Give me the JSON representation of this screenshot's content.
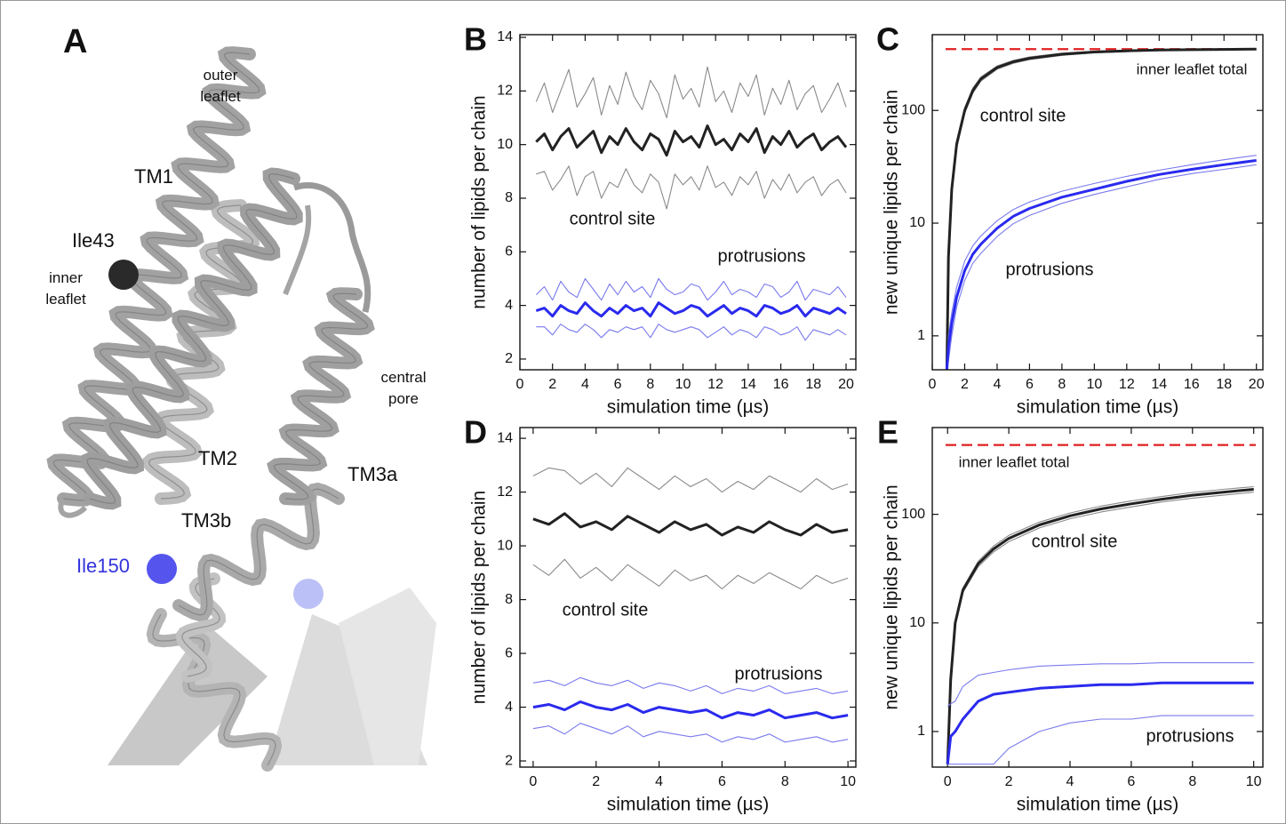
{
  "panel_a": {
    "letter": "A",
    "labels": [
      "outer leaflet",
      "TM1",
      "Ile43",
      "inner leaflet",
      "central pore",
      "TM2",
      "TM3a",
      "TM3b",
      "Ile150"
    ]
  },
  "chart_data": [
    {
      "type": "line",
      "panel": "B",
      "xlabel": "simulation time (µs)",
      "ylabel": "number of lipids per chain",
      "annotations": [
        "control site",
        "protrusions"
      ],
      "x": [
        1,
        1.5,
        2,
        2.5,
        3,
        3.5,
        4,
        4.5,
        5,
        5.5,
        6,
        6.5,
        7,
        7.5,
        8,
        8.5,
        9,
        9.5,
        10,
        10.5,
        11,
        11.5,
        12,
        12.5,
        13,
        13.5,
        14,
        14.5,
        15,
        15.5,
        16,
        16.5,
        17,
        17.5,
        18,
        18.5,
        19,
        19.5,
        20
      ],
      "series": [
        {
          "color": "#8a8a8a",
          "values": [
            11.6,
            12.3,
            11.2,
            12.0,
            12.8,
            11.4,
            11.9,
            12.5,
            11.1,
            12.2,
            11.5,
            12.7,
            11.8,
            11.3,
            12.4,
            11.9,
            11.0,
            12.6,
            11.7,
            12.1,
            11.4,
            12.9,
            11.6,
            12.0,
            11.2,
            12.3,
            11.8,
            12.6,
            11.1,
            12.1,
            11.5,
            12.4,
            11.3,
            11.9,
            12.2,
            11.2,
            11.7,
            12.3,
            11.4
          ]
        },
        {
          "color": "#8a8a8a",
          "values": [
            8.9,
            9.0,
            8.3,
            8.7,
            9.2,
            8.1,
            8.8,
            9.0,
            8.0,
            8.6,
            8.4,
            9.1,
            8.5,
            8.2,
            8.9,
            8.6,
            7.6,
            8.9,
            8.5,
            8.8,
            8.3,
            9.2,
            8.4,
            8.6,
            8.1,
            8.8,
            8.5,
            9.0,
            8.0,
            8.7,
            8.3,
            8.9,
            8.2,
            8.6,
            8.8,
            8.1,
            8.5,
            8.7,
            8.2
          ]
        },
        {
          "color": "#222222",
          "values": [
            10.1,
            10.4,
            9.8,
            10.3,
            10.6,
            9.9,
            10.2,
            10.5,
            9.7,
            10.3,
            10.0,
            10.6,
            10.1,
            9.8,
            10.4,
            10.2,
            9.6,
            10.5,
            10.1,
            10.3,
            9.9,
            10.7,
            10.0,
            10.2,
            9.8,
            10.4,
            10.1,
            10.6,
            9.7,
            10.3,
            10.0,
            10.5,
            9.9,
            10.2,
            10.4,
            9.8,
            10.1,
            10.3,
            9.9
          ]
        },
        {
          "color": "#7a7aee",
          "values": [
            4.4,
            4.7,
            4.2,
            4.9,
            4.5,
            4.3,
            5.0,
            4.6,
            4.2,
            4.8,
            4.4,
            4.9,
            4.5,
            4.7,
            4.3,
            5.0,
            4.6,
            4.4,
            4.5,
            4.8,
            4.7,
            4.2,
            4.5,
            4.9,
            4.4,
            4.6,
            4.5,
            4.3,
            4.8,
            4.7,
            4.3,
            4.5,
            4.9,
            4.2,
            4.6,
            4.5,
            4.4,
            4.7,
            4.3
          ]
        },
        {
          "color": "#7a7aee",
          "values": [
            3.2,
            3.2,
            2.9,
            3.3,
            3.1,
            3.0,
            3.3,
            3.1,
            2.8,
            3.1,
            3.0,
            3.2,
            3.1,
            3.2,
            2.8,
            3.3,
            3.1,
            3.0,
            3.1,
            3.2,
            3.1,
            2.8,
            3.0,
            3.2,
            2.9,
            3.1,
            3.0,
            2.8,
            3.2,
            3.1,
            2.9,
            3.0,
            3.2,
            2.7,
            3.1,
            3.0,
            2.9,
            3.1,
            2.9
          ]
        },
        {
          "color": "#2a2aee",
          "values": [
            3.8,
            3.9,
            3.6,
            4.0,
            3.8,
            3.7,
            4.1,
            3.8,
            3.6,
            3.9,
            3.7,
            4.0,
            3.8,
            3.9,
            3.6,
            4.1,
            3.9,
            3.7,
            3.8,
            4.0,
            3.9,
            3.6,
            3.8,
            4.0,
            3.7,
            3.9,
            3.8,
            3.6,
            4.0,
            3.9,
            3.7,
            3.8,
            4.0,
            3.6,
            3.9,
            3.8,
            3.7,
            3.9,
            3.7
          ]
        }
      ],
      "xlim": [
        0,
        20.6
      ],
      "xticks": [
        0,
        2,
        4,
        6,
        8,
        10,
        12,
        14,
        16,
        18,
        20
      ],
      "ylim": [
        1.6,
        14.1
      ],
      "yticks": [
        2,
        4,
        6,
        8,
        10,
        12,
        14
      ],
      "log_y": false
    },
    {
      "type": "line",
      "panel": "C",
      "xlabel": "simulation time (µs)",
      "ylabel": "new unique lipids per chain",
      "annotations": [
        "control site",
        "protrusions"
      ],
      "reference": {
        "value": 350,
        "label": "inner leaflet total",
        "color": "#e02020"
      },
      "x": [
        0.9,
        1,
        1.2,
        1.5,
        2,
        2.5,
        3,
        4,
        5,
        6,
        8,
        10,
        12,
        14,
        16,
        18,
        20
      ],
      "series": [
        {
          "color": "#8a8a8a",
          "values": [
            0.5,
            5.5,
            22,
            54,
            106,
            158,
            198,
            248,
            278,
            298,
            322,
            336,
            343,
            347,
            350,
            352,
            353
          ]
        },
        {
          "color": "#8a8a8a",
          "values": [
            0.5,
            4.5,
            18,
            46,
            94,
            142,
            182,
            232,
            262,
            282,
            308,
            324,
            333,
            339,
            342,
            344,
            347
          ]
        },
        {
          "color": "#222222",
          "values": [
            0.5,
            5,
            20,
            50,
            100,
            150,
            190,
            240,
            270,
            290,
            315,
            330,
            338,
            343,
            346,
            348,
            350
          ]
        },
        {
          "color": "#7a7aee",
          "values": [
            0.5,
            1.0,
            1.6,
            2.7,
            4.6,
            6.3,
            7.7,
            10.5,
            13.2,
            15.4,
            19.2,
            22.5,
            26,
            29.5,
            33,
            36.5,
            40
          ]
        },
        {
          "color": "#7a7aee",
          "values": [
            0.5,
            0.6,
            1.0,
            1.8,
            3.1,
            4.4,
            5.4,
            7.6,
            9.9,
            11.7,
            15,
            18,
            21,
            24.5,
            27.5,
            30,
            33
          ]
        },
        {
          "color": "#2a2aee",
          "values": [
            0.5,
            0.8,
            1.3,
            2.2,
            3.8,
            5.3,
            6.5,
            9,
            11.5,
            13.5,
            17,
            20,
            23.5,
            27,
            30,
            33,
            36
          ]
        }
      ],
      "xlim": [
        0,
        20.4
      ],
      "xticks": [
        0,
        2,
        4,
        6,
        8,
        10,
        12,
        14,
        16,
        18,
        20
      ],
      "ylim": [
        0.5,
        470
      ],
      "yticks": [
        1,
        10,
        100
      ],
      "log_y": true
    },
    {
      "type": "line",
      "panel": "D",
      "xlabel": "simulation time (µs)",
      "ylabel": "number of lipids per chain",
      "annotations": [
        "control site",
        "protrusions"
      ],
      "x": [
        0,
        0.5,
        1,
        1.5,
        2,
        2.5,
        3,
        3.5,
        4,
        4.5,
        5,
        5.5,
        6,
        6.5,
        7,
        7.5,
        8,
        8.5,
        9,
        9.5,
        10
      ],
      "series": [
        {
          "color": "#8a8a8a",
          "values": [
            12.6,
            12.9,
            12.8,
            12.3,
            12.7,
            12.2,
            12.9,
            12.5,
            12.1,
            12.6,
            12.2,
            12.5,
            12.0,
            12.4,
            12.1,
            12.6,
            12.3,
            12.0,
            12.5,
            12.1,
            12.3
          ]
        },
        {
          "color": "#8a8a8a",
          "values": [
            9.3,
            8.9,
            9.5,
            8.8,
            9.2,
            8.7,
            9.3,
            8.9,
            8.5,
            9.1,
            8.7,
            8.9,
            8.4,
            8.9,
            8.6,
            9.0,
            8.7,
            8.4,
            8.9,
            8.6,
            8.8
          ]
        },
        {
          "color": "#222222",
          "values": [
            11.0,
            10.8,
            11.2,
            10.7,
            10.9,
            10.6,
            11.1,
            10.8,
            10.5,
            10.9,
            10.6,
            10.8,
            10.4,
            10.7,
            10.5,
            10.9,
            10.6,
            10.4,
            10.8,
            10.5,
            10.6
          ]
        },
        {
          "color": "#7a7aee",
          "values": [
            4.9,
            5.0,
            4.8,
            5.1,
            4.9,
            4.8,
            5.0,
            4.7,
            4.9,
            4.8,
            4.6,
            4.8,
            4.5,
            4.7,
            4.6,
            4.8,
            4.5,
            4.6,
            4.7,
            4.5,
            4.6
          ]
        },
        {
          "color": "#7a7aee",
          "values": [
            3.2,
            3.3,
            3.0,
            3.4,
            3.2,
            3.0,
            3.3,
            2.9,
            3.1,
            3.0,
            2.9,
            3.0,
            2.7,
            2.9,
            2.8,
            3.0,
            2.7,
            2.8,
            2.9,
            2.7,
            2.8
          ]
        },
        {
          "color": "#2a2aee",
          "values": [
            4.0,
            4.1,
            3.9,
            4.2,
            4.0,
            3.9,
            4.1,
            3.8,
            4.0,
            3.9,
            3.8,
            3.9,
            3.6,
            3.8,
            3.7,
            3.9,
            3.6,
            3.7,
            3.8,
            3.6,
            3.7
          ]
        }
      ],
      "xlim": [
        -0.42,
        10.25
      ],
      "xticks": [
        0,
        2,
        4,
        6,
        8,
        10
      ],
      "ylim": [
        1.77,
        14.4
      ],
      "yticks": [
        2,
        4,
        6,
        8,
        10,
        12,
        14
      ],
      "log_y": false
    },
    {
      "type": "line",
      "panel": "E",
      "xlabel": "simulation time (µs)",
      "ylabel": "new unique lipids per chain",
      "annotations": [
        "control site",
        "protrusions"
      ],
      "reference": {
        "value": 435,
        "label": "inner leaflet total",
        "color": "#e02020"
      },
      "x": [
        0,
        0.1,
        0.25,
        0.5,
        1,
        1.5,
        2,
        3,
        4,
        5,
        6,
        7,
        8,
        9,
        10
      ],
      "series": [
        {
          "color": "#8a8a8a",
          "values": [
            0.5,
            3.2,
            10.6,
            21,
            37,
            51,
            64,
            85,
            103,
            119,
            133,
            146,
            159,
            170,
            180
          ]
        },
        {
          "color": "#8a8a8a",
          "values": [
            0.5,
            2.8,
            9.4,
            19,
            33,
            45,
            56,
            75,
            91,
            105,
            117,
            130,
            141,
            150,
            160
          ]
        },
        {
          "color": "#222222",
          "values": [
            0.5,
            3,
            10,
            20,
            35,
            48,
            60,
            80,
            97,
            112,
            125,
            138,
            150,
            160,
            170
          ]
        },
        {
          "color": "#7a7aee",
          "values": [
            1.7,
            1.8,
            1.9,
            2.6,
            3.3,
            3.5,
            3.7,
            4.0,
            4.1,
            4.2,
            4.2,
            4.3,
            4.3,
            4.3,
            4.3
          ]
        },
        {
          "color": "#7a7aee",
          "values": [
            0.5,
            0.5,
            0.5,
            0.5,
            0.5,
            0.5,
            0.7,
            1.0,
            1.2,
            1.3,
            1.3,
            1.4,
            1.4,
            1.4,
            1.4
          ]
        },
        {
          "color": "#2a2aee",
          "values": [
            0.5,
            0.9,
            1.0,
            1.3,
            1.9,
            2.2,
            2.3,
            2.5,
            2.6,
            2.7,
            2.7,
            2.8,
            2.8,
            2.8,
            2.8
          ]
        }
      ],
      "xlim": [
        -0.5,
        10.3
      ],
      "xticks": [
        0,
        2,
        4,
        6,
        8,
        10
      ],
      "ylim": [
        0.47,
        630
      ],
      "yticks": [
        1,
        10,
        100
      ],
      "log_y": true
    }
  ]
}
